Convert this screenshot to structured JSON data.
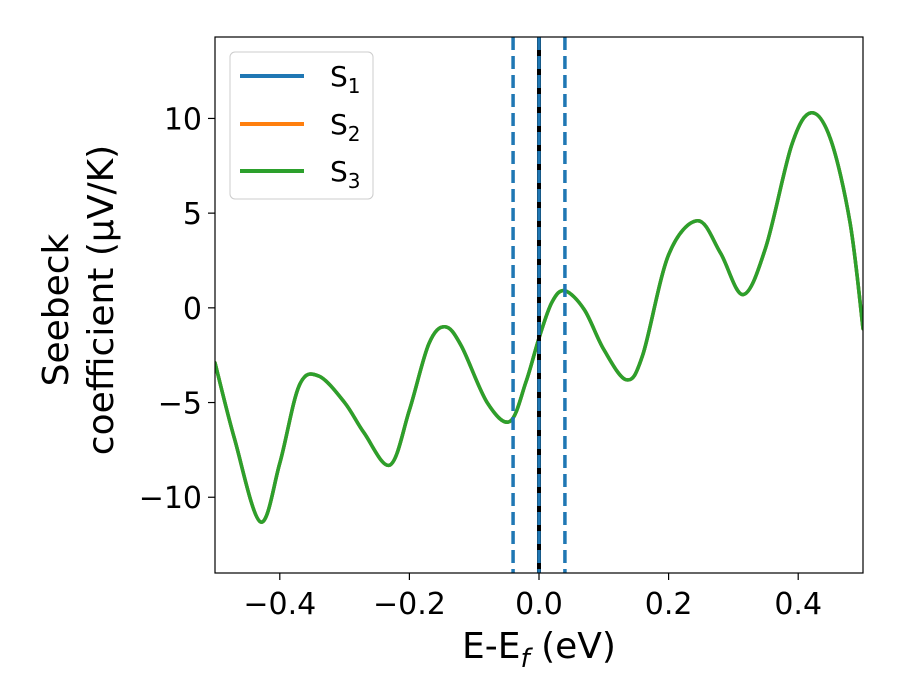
{
  "chart_data": {
    "type": "line",
    "title": "",
    "xlabel": "E-E",
    "xlabel_sub": "f",
    "xlabel_suffix": " (eV)",
    "ylabel_line1": "Seebeck",
    "ylabel_line2": "coefficient  (μV/K)",
    "xlim": [
      -0.5,
      0.5
    ],
    "ylim": [
      -14,
      14.3
    ],
    "xticks": [
      -0.4,
      -0.2,
      0.0,
      0.2,
      0.4
    ],
    "xtick_labels": [
      "−0.4",
      "−0.2",
      "0.0",
      "0.2",
      "0.4"
    ],
    "yticks": [
      -10,
      -5,
      0,
      5,
      10
    ],
    "ytick_labels": [
      "−10",
      "−5",
      "0",
      "5",
      "10"
    ],
    "grid": false,
    "legend_position": "top-left",
    "vlines": [
      {
        "x": -0.04,
        "style": "dashed",
        "color": "#1f77b4"
      },
      {
        "x": 0.0,
        "style": "solid",
        "color": "#000000"
      },
      {
        "x": 0.0,
        "style": "dashed",
        "color": "#1f77b4"
      },
      {
        "x": 0.04,
        "style": "dashed",
        "color": "#1f77b4"
      }
    ],
    "shared_x": [
      -0.5,
      -0.47,
      -0.43,
      -0.4,
      -0.37,
      -0.34,
      -0.3,
      -0.27,
      -0.23,
      -0.2,
      -0.17,
      -0.145,
      -0.12,
      -0.08,
      -0.045,
      -0.02,
      0.0,
      0.02,
      0.04,
      0.07,
      0.1,
      0.135,
      0.16,
      0.2,
      0.245,
      0.28,
      0.315,
      0.35,
      0.39,
      0.42,
      0.45,
      0.48,
      0.5
    ],
    "series": [
      {
        "name": "S",
        "sub": "1",
        "color": "#1f77b4",
        "values": [
          -2.9,
          -6.9,
          -11.3,
          -8.2,
          -4.1,
          -3.6,
          -5.0,
          -6.6,
          -8.3,
          -5.4,
          -1.9,
          -1.0,
          -2.0,
          -5.0,
          -6.0,
          -3.9,
          -1.6,
          0.3,
          0.9,
          -0.1,
          -2.2,
          -3.8,
          -2.5,
          2.8,
          4.6,
          2.9,
          0.7,
          3.2,
          8.6,
          10.3,
          8.9,
          4.5,
          -1.1
        ]
      },
      {
        "name": "S",
        "sub": "2",
        "color": "#ff7f0e",
        "values": [
          -2.9,
          -6.9,
          -11.3,
          -8.2,
          -4.1,
          -3.6,
          -5.0,
          -6.6,
          -8.3,
          -5.4,
          -1.9,
          -1.0,
          -2.0,
          -5.0,
          -6.0,
          -3.9,
          -1.6,
          0.3,
          0.9,
          -0.1,
          -2.2,
          -3.8,
          -2.5,
          2.8,
          4.6,
          2.9,
          0.7,
          3.2,
          8.6,
          10.3,
          8.9,
          4.5,
          -1.1
        ]
      },
      {
        "name": "S",
        "sub": "3",
        "color": "#2ca02c",
        "values": [
          -2.9,
          -6.9,
          -11.3,
          -8.2,
          -4.1,
          -3.6,
          -5.0,
          -6.6,
          -8.3,
          -5.4,
          -1.9,
          -1.0,
          -2.0,
          -5.0,
          -6.0,
          -3.9,
          -1.6,
          0.3,
          0.9,
          -0.1,
          -2.2,
          -3.8,
          -2.5,
          2.8,
          4.6,
          2.9,
          0.7,
          3.2,
          8.6,
          10.3,
          8.9,
          4.5,
          -1.1
        ]
      }
    ]
  }
}
